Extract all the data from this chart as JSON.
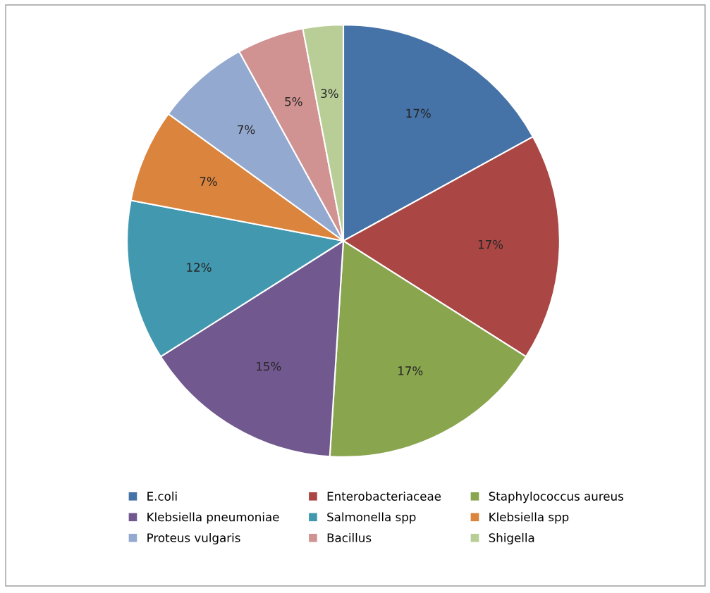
{
  "chart_data": {
    "type": "pie",
    "categories": [
      "E.coli",
      "Enterobacteriaceae",
      "Staphylococcus aureus",
      "Klebsiella pneumoniae",
      "Salmonella spp",
      "Klebsiella spp",
      "Proteus vulgaris",
      "Bacillus",
      "Shigella"
    ],
    "values": [
      17,
      17,
      17,
      15,
      12,
      7,
      7,
      5,
      3
    ],
    "colors": [
      "#4572a7",
      "#aa4643",
      "#89a54e",
      "#71588f",
      "#4198af",
      "#db843d",
      "#93a9cf",
      "#d19392",
      "#b9cd96"
    ],
    "value_labels": [
      "17%",
      "17%",
      "17%",
      "15%",
      "12%",
      "7%",
      "7%",
      "5%",
      "3%"
    ],
    "legend": "bottom"
  }
}
